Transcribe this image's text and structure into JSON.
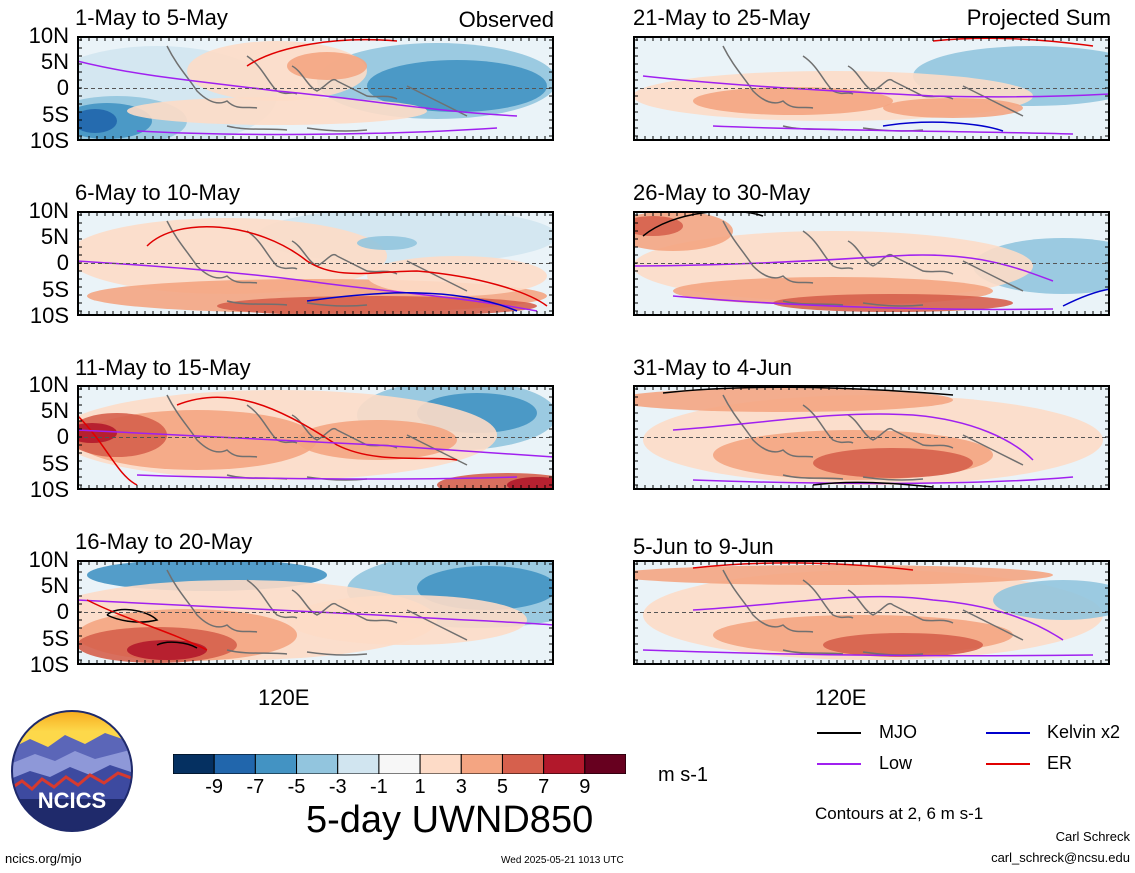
{
  "header": {
    "left_tag": "Observed",
    "right_tag": "Projected Sum"
  },
  "lat_labels": [
    "10N",
    "5N",
    "0",
    "5S",
    "10S"
  ],
  "panels_left": [
    {
      "title": "1-May to 5-May"
    },
    {
      "title": "6-May to 10-May"
    },
    {
      "title": "11-May to 15-May"
    },
    {
      "title": "16-May to 20-May"
    }
  ],
  "panels_right": [
    {
      "title": "21-May to 25-May"
    },
    {
      "title": "26-May to 30-May"
    },
    {
      "title": "31-May to 4-Jun"
    },
    {
      "title": "5-Jun to 9-Jun"
    }
  ],
  "lon_label": "120E",
  "colorbar": {
    "colors": [
      "#053061",
      "#2166ac",
      "#4393c3",
      "#92c5de",
      "#d1e5f0",
      "#f7f7f7",
      "#fddbc7",
      "#f4a582",
      "#d6604d",
      "#b2182b",
      "#67001f"
    ],
    "ticks": [
      "-9",
      "-7",
      "-5",
      "-3",
      "-1",
      "1",
      "3",
      "5",
      "7",
      "9"
    ],
    "unit": "m s-1"
  },
  "chart_title": "5-day UWND850",
  "legend": [
    {
      "name": "MJO",
      "color": "#000000"
    },
    {
      "name": "Kelvin x2",
      "color": "#0000cc"
    },
    {
      "name": "Low",
      "color": "#a020f0"
    },
    {
      "name": "ER",
      "color": "#e00000"
    }
  ],
  "contour_note": "Contours at 2, 6 m s-1",
  "logo": {
    "text": "NCICS"
  },
  "footer": {
    "url": "ncics.org/mjo",
    "timestamp": "Wed 2025-05-21 1013 UTC",
    "author": "Carl Schreck",
    "email": "carl_schreck@ncsu.edu"
  }
}
